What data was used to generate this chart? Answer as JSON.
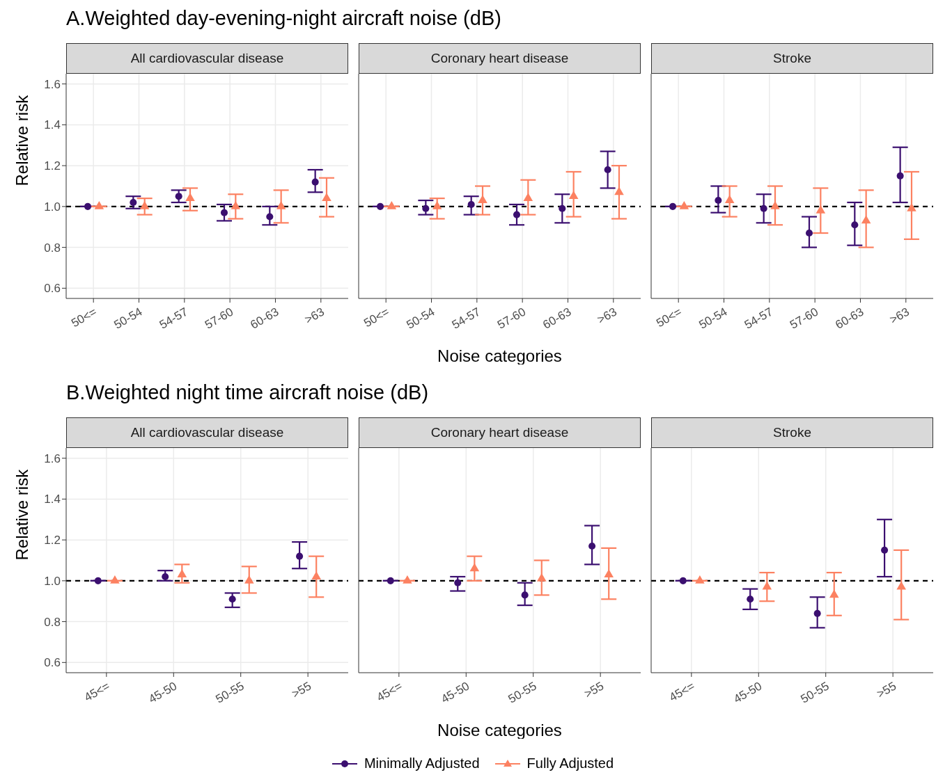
{
  "chart_data": [
    {
      "type": "scatter",
      "subtitle": "A.Weighted day-evening-night aircraft noise (dB)",
      "title": "All cardiovascular disease",
      "ylabel": "Relative risk",
      "categories": [
        "50<=",
        "50-54",
        "54-57",
        "57-60",
        "60-63",
        ">63"
      ],
      "ylim": [
        0.55,
        1.65
      ],
      "yticks": [
        0.6,
        0.8,
        {
          "value": 1,
          "label": "1.0"
        },
        1.2,
        1.4,
        1.6
      ],
      "grid": true,
      "legend": "bottom",
      "ref_lines": [
        {
          "axis": "y",
          "value": 1,
          "color": "#000000",
          "line_style": "dashed"
        }
      ],
      "series": [
        {
          "name": "Minimally Adjusted",
          "color": "#3b0f70",
          "marker": "circle",
          "values": [
            1.0,
            1.02,
            1.05,
            0.97,
            0.95,
            1.12
          ],
          "errors": [
            [
              1,
              1
            ],
            [
              0.99,
              1.05
            ],
            [
              1.02,
              1.08
            ],
            [
              0.93,
              1.01
            ],
            [
              0.91,
              1.0
            ],
            [
              1.07,
              1.18
            ]
          ]
        },
        {
          "name": "Fully Adjusted",
          "color": "#fc8161",
          "marker": "triangle",
          "values": [
            1.0,
            1.0,
            1.04,
            1.0,
            1.0,
            1.04
          ],
          "errors": [
            [
              1,
              1
            ],
            [
              0.96,
              1.04
            ],
            [
              0.98,
              1.09
            ],
            [
              0.94,
              1.06
            ],
            [
              0.92,
              1.08
            ],
            [
              0.95,
              1.14
            ]
          ]
        }
      ]
    },
    {
      "type": "scatter",
      "title": "Coronary heart disease",
      "xlabel": "Noise categories",
      "categories": [
        "50<=",
        "50-54",
        "54-57",
        "57-60",
        "60-63",
        ">63"
      ],
      "ylim": [
        0.55,
        1.65
      ],
      "yticks": [
        0.6,
        0.8,
        1,
        1.2,
        1.4,
        1.6
      ],
      "tick_labels": "x",
      "grid": true,
      "ref_lines": [
        {
          "axis": "y",
          "value": 1,
          "color": "#000000",
          "line_style": "dashed"
        }
      ],
      "series": [
        {
          "color": "#3b0f70",
          "marker": "circle",
          "values": [
            1.0,
            0.99,
            1.01,
            0.96,
            0.99,
            1.18
          ],
          "errors": [
            [
              1,
              1
            ],
            [
              0.96,
              1.03
            ],
            [
              0.96,
              1.05
            ],
            [
              0.91,
              1.01
            ],
            [
              0.92,
              1.06
            ],
            [
              1.09,
              1.27
            ]
          ]
        },
        {
          "color": "#fc8161",
          "marker": "triangle",
          "values": [
            1.0,
            1.0,
            1.03,
            1.04,
            1.05,
            1.07
          ],
          "errors": [
            [
              1,
              1
            ],
            [
              0.94,
              1.04
            ],
            [
              0.96,
              1.1
            ],
            [
              0.96,
              1.13
            ],
            [
              0.95,
              1.17
            ],
            [
              0.94,
              1.2
            ]
          ]
        }
      ]
    },
    {
      "type": "scatter",
      "title": "Stroke",
      "categories": [
        "50<=",
        "50-54",
        "54-57",
        "57-60",
        "60-63",
        ">63"
      ],
      "ylim": [
        0.55,
        1.65
      ],
      "yticks": [
        0.6,
        0.8,
        1,
        1.2,
        1.4,
        1.6
      ],
      "tick_labels": "x",
      "grid": true,
      "ref_lines": [
        {
          "axis": "y",
          "value": 1,
          "color": "#000000",
          "line_style": "dashed"
        }
      ],
      "series": [
        {
          "color": "#3b0f70",
          "marker": "circle",
          "values": [
            1.0,
            1.03,
            0.99,
            0.87,
            0.91,
            1.15
          ],
          "errors": [
            [
              1,
              1
            ],
            [
              0.97,
              1.1
            ],
            [
              0.92,
              1.06
            ],
            [
              0.8,
              0.95
            ],
            [
              0.81,
              1.02
            ],
            [
              1.02,
              1.29
            ]
          ]
        },
        {
          "color": "#fc8161",
          "marker": "triangle",
          "values": [
            1.0,
            1.03,
            1.0,
            0.98,
            0.93,
            0.99
          ],
          "errors": [
            [
              1,
              1
            ],
            [
              0.95,
              1.1
            ],
            [
              0.91,
              1.1
            ],
            [
              0.87,
              1.09
            ],
            [
              0.8,
              1.08
            ],
            [
              0.84,
              1.17
            ]
          ]
        }
      ]
    },
    {
      "type": "scatter",
      "subtitle": "B.Weighted night time aircraft noise (dB)",
      "title": "All cardiovascular disease",
      "ylabel": "Relative risk",
      "categories": [
        "45<=",
        "45-50",
        "50-55",
        ">55"
      ],
      "ylim": [
        0.55,
        1.65
      ],
      "yticks": [
        0.6,
        0.8,
        {
          "value": 1,
          "label": "1.0"
        },
        1.2,
        1.4,
        1.6
      ],
      "grid": true,
      "ref_lines": [
        {
          "axis": "y",
          "value": 1,
          "color": "#000000",
          "line_style": "dashed"
        }
      ],
      "series": [
        {
          "color": "#3b0f70",
          "marker": "circle",
          "values": [
            1.0,
            1.02,
            0.91,
            1.12
          ],
          "errors": [
            [
              1,
              1
            ],
            [
              1.0,
              1.05
            ],
            [
              0.87,
              0.94
            ],
            [
              1.06,
              1.19
            ]
          ]
        },
        {
          "color": "#fc8161",
          "marker": "triangle",
          "values": [
            1.0,
            1.03,
            1.0,
            1.02
          ],
          "errors": [
            [
              1,
              1
            ],
            [
              0.99,
              1.08
            ],
            [
              0.94,
              1.07
            ],
            [
              0.92,
              1.12
            ]
          ]
        }
      ]
    },
    {
      "type": "scatter",
      "title": "Coronary heart disease",
      "xlabel": "Noise categories",
      "categories": [
        "45<=",
        "45-50",
        "50-55",
        ">55"
      ],
      "ylim": [
        0.55,
        1.65
      ],
      "yticks": [
        0.6,
        0.8,
        1,
        1.2,
        1.4,
        1.6
      ],
      "tick_labels": "x",
      "grid": true,
      "ref_lines": [
        {
          "axis": "y",
          "value": 1,
          "color": "#000000",
          "line_style": "dashed"
        }
      ],
      "series": [
        {
          "color": "#3b0f70",
          "marker": "circle",
          "values": [
            1.0,
            0.99,
            0.93,
            1.17
          ],
          "errors": [
            [
              1,
              1
            ],
            [
              0.95,
              1.02
            ],
            [
              0.88,
              0.99
            ],
            [
              1.08,
              1.27
            ]
          ]
        },
        {
          "color": "#fc8161",
          "marker": "triangle",
          "values": [
            1.0,
            1.06,
            1.01,
            1.03
          ],
          "errors": [
            [
              1,
              1
            ],
            [
              1.0,
              1.12
            ],
            [
              0.93,
              1.1
            ],
            [
              0.91,
              1.16
            ]
          ]
        }
      ]
    },
    {
      "type": "scatter",
      "title": "Stroke",
      "categories": [
        "45<=",
        "45-50",
        "50-55",
        ">55"
      ],
      "ylim": [
        0.55,
        1.65
      ],
      "yticks": [
        0.6,
        0.8,
        1,
        1.2,
        1.4,
        1.6
      ],
      "tick_labels": "x",
      "grid": true,
      "ref_lines": [
        {
          "axis": "y",
          "value": 1,
          "color": "#000000",
          "line_style": "dashed"
        }
      ],
      "series": [
        {
          "color": "#3b0f70",
          "marker": "circle",
          "values": [
            1.0,
            0.91,
            0.84,
            1.15
          ],
          "errors": [
            [
              1,
              1
            ],
            [
              0.86,
              0.96
            ],
            [
              0.77,
              0.92
            ],
            [
              1.02,
              1.3
            ]
          ]
        },
        {
          "color": "#fc8161",
          "marker": "triangle",
          "values": [
            1.0,
            0.97,
            0.93,
            0.97
          ],
          "errors": [
            [
              1,
              1
            ],
            [
              0.9,
              1.04
            ],
            [
              0.83,
              1.04
            ],
            [
              0.81,
              1.15
            ]
          ]
        }
      ]
    }
  ]
}
